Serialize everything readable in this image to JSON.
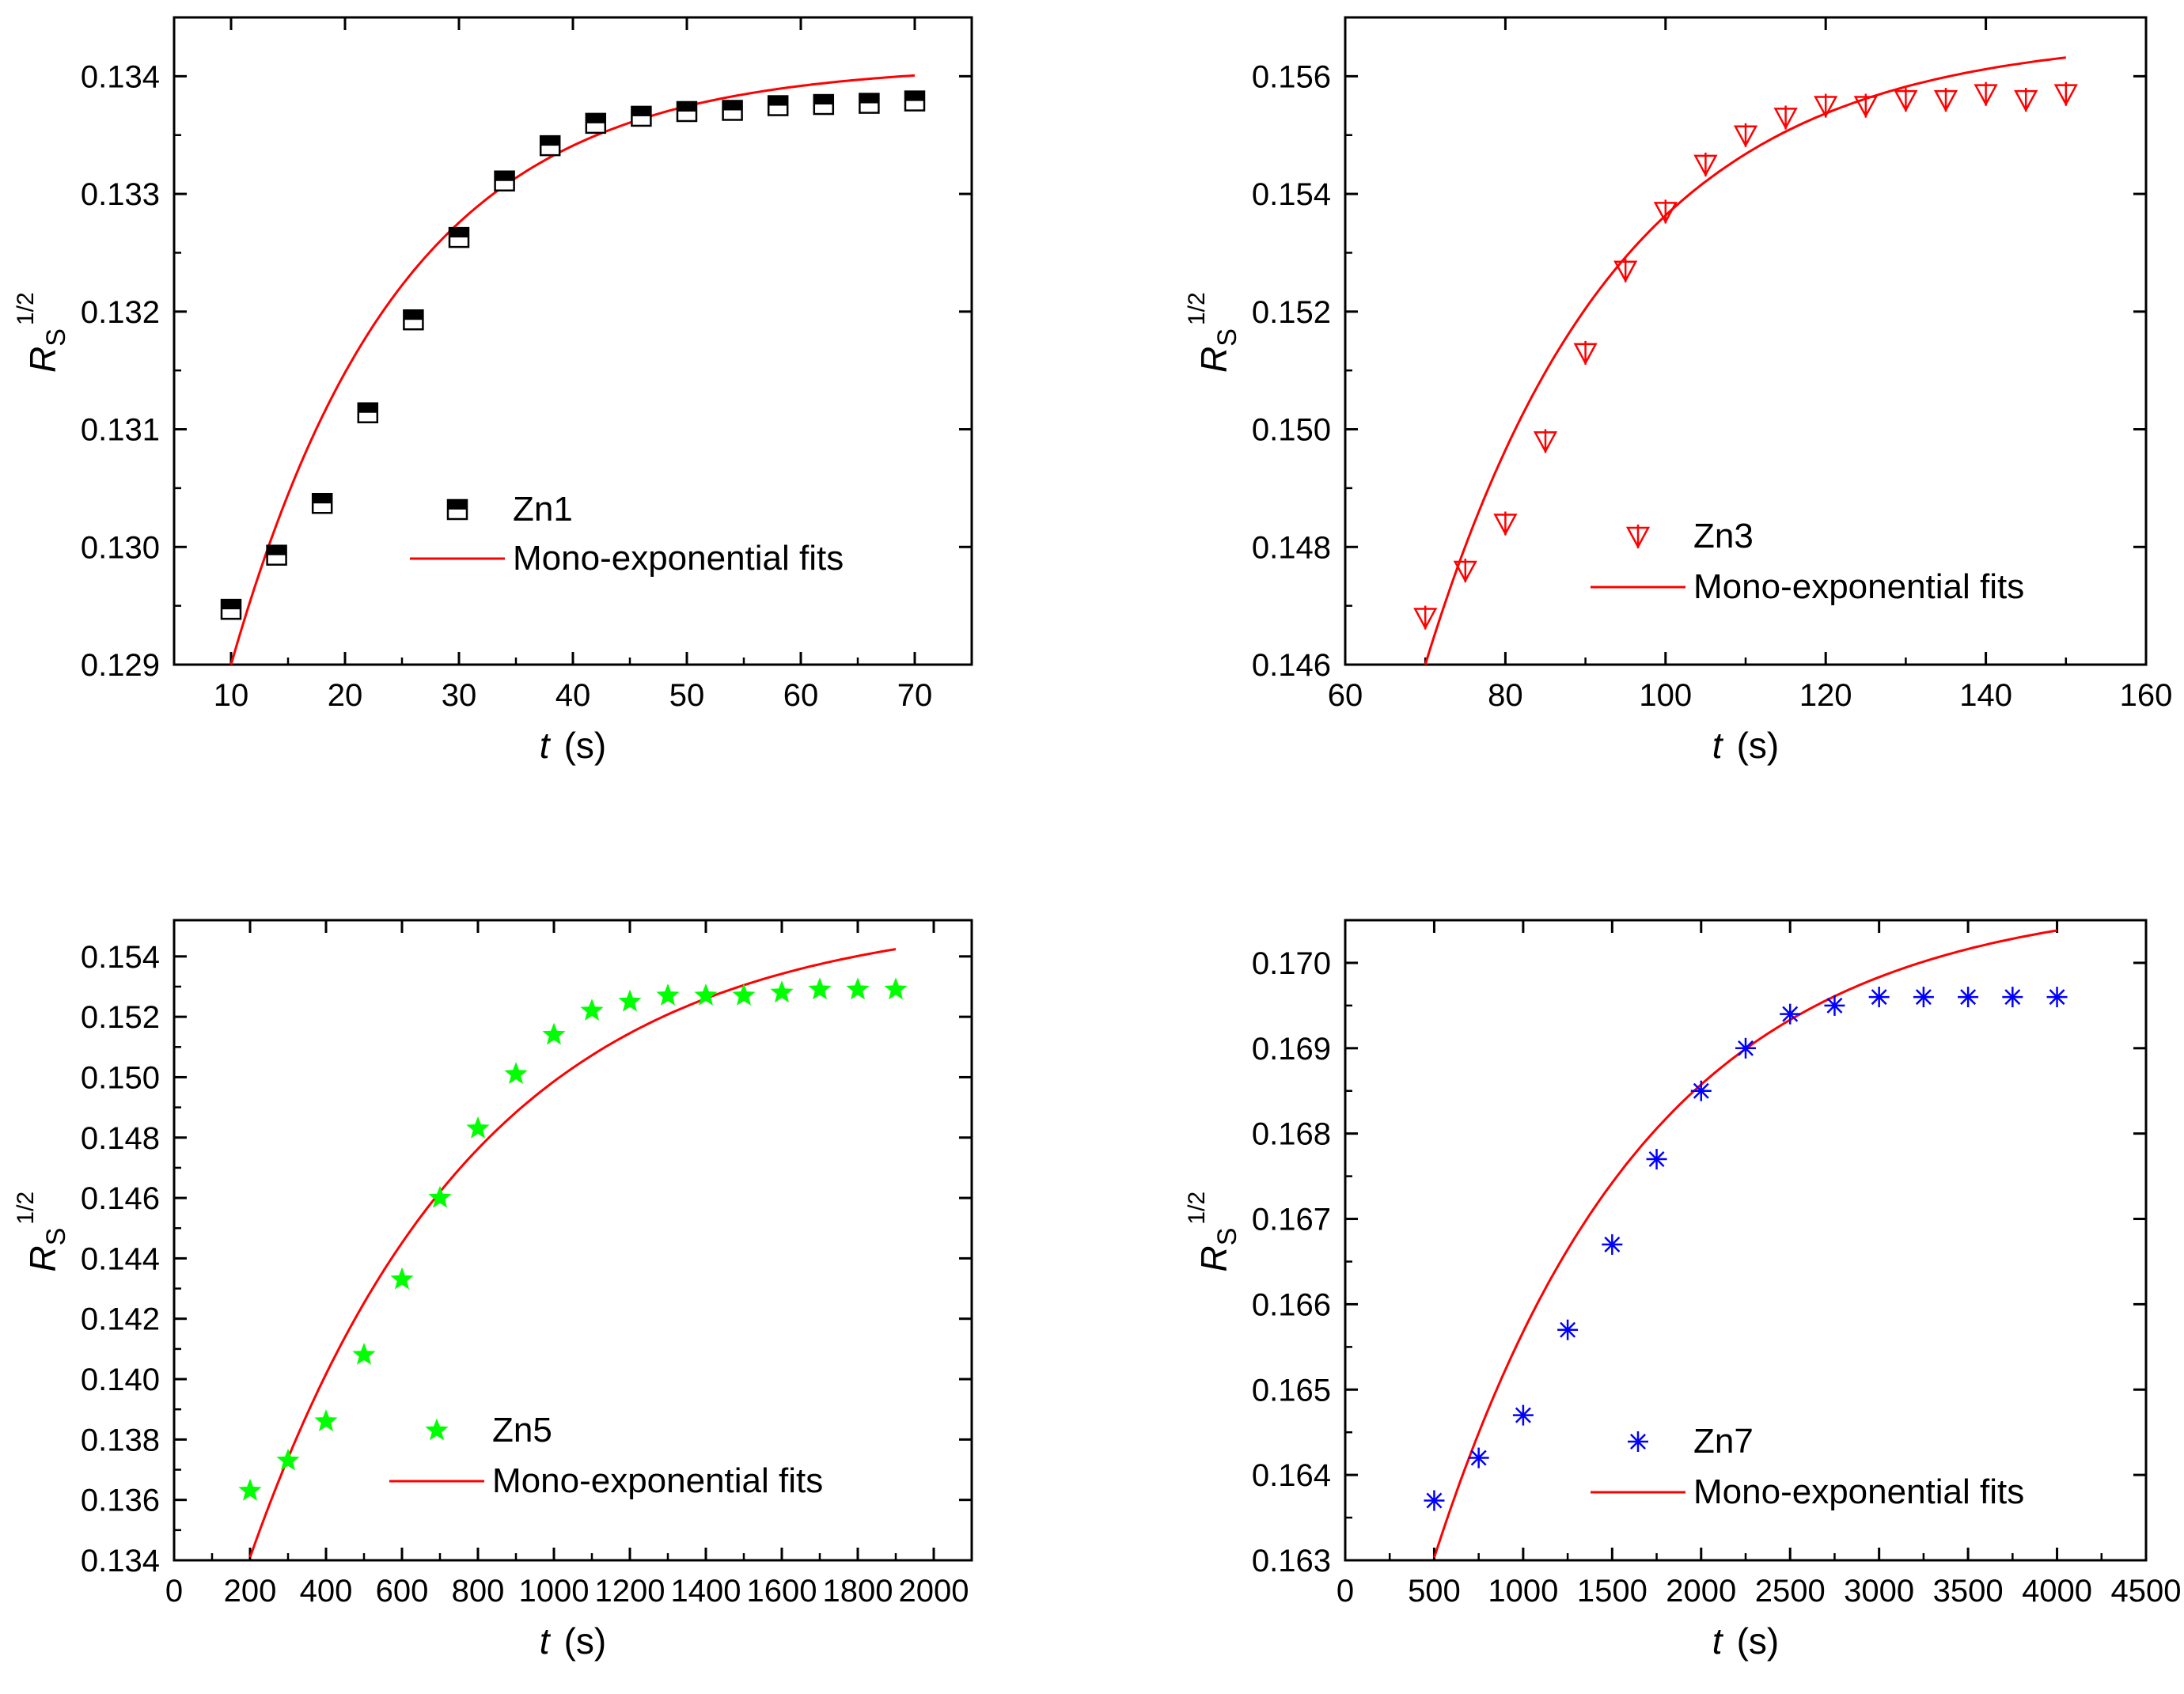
{
  "chart_data": [
    {
      "type": "scatter",
      "xlabel_var": "t",
      "xlabel_unit": "(s)",
      "ylabel_var": "R",
      "ylabel_sub": "S",
      "ylabel_sup": "1/2",
      "xlim": [
        5,
        75
      ],
      "ylim": [
        0.129,
        0.1345
      ],
      "xticks": [
        10,
        20,
        30,
        40,
        50,
        60,
        70
      ],
      "yticks": [
        0.129,
        0.13,
        0.131,
        0.132,
        0.133,
        0.134
      ],
      "ytick_labels": [
        "0.129",
        "0.130",
        "0.131",
        "0.132",
        "0.133",
        "0.134"
      ],
      "legend_position": "center-right",
      "series": [
        {
          "name": "Zn1",
          "kind": "markers",
          "marker": "half-filled-square",
          "color": "#000000",
          "x": [
            10,
            14,
            18,
            22,
            26,
            30,
            34,
            38,
            42,
            46,
            50,
            54,
            58,
            62,
            66,
            70
          ],
          "y": [
            0.12947,
            0.12993,
            0.13037,
            0.13114,
            0.13193,
            0.13263,
            0.13311,
            0.13341,
            0.1336,
            0.13366,
            0.1337,
            0.13371,
            0.13375,
            0.13376,
            0.13377,
            0.13379
          ]
        },
        {
          "name": "Mono-exponential fits",
          "kind": "line",
          "color": "#ff0000",
          "fit": {
            "y_inf": 0.1341,
            "amplitude": 0.0051,
            "x0": 10,
            "tau": 15,
            "x_start": 10,
            "x_end": 70
          }
        }
      ]
    },
    {
      "type": "scatter",
      "xlabel_var": "t",
      "xlabel_unit": "(s)",
      "ylabel_var": "R",
      "ylabel_sub": "S",
      "ylabel_sup": "1/2",
      "xlim": [
        60,
        160
      ],
      "ylim": [
        0.146,
        0.157
      ],
      "xticks": [
        60,
        80,
        100,
        120,
        140,
        160
      ],
      "yticks": [
        0.146,
        0.148,
        0.15,
        0.152,
        0.154,
        0.156
      ],
      "ytick_labels": [
        "0.146",
        "0.148",
        "0.150",
        "0.152",
        "0.154",
        "0.156"
      ],
      "legend_position": "center-right",
      "series": [
        {
          "name": "Zn3",
          "kind": "markers",
          "marker": "down-triangle-line",
          "color": "#ff0000",
          "x": [
            70,
            75,
            80,
            85,
            90,
            95,
            100,
            105,
            110,
            115,
            120,
            125,
            130,
            135,
            140,
            145,
            150
          ],
          "y": [
            0.1468,
            0.1476,
            0.1484,
            0.1498,
            0.1513,
            0.1527,
            0.1537,
            0.1545,
            0.155,
            0.1553,
            0.1555,
            0.1555,
            0.1556,
            0.1556,
            0.1557,
            0.1556,
            0.1557
          ]
        },
        {
          "name": "Mono-exponential fits",
          "kind": "line",
          "color": "#ff0000",
          "fit": {
            "y_inf": 0.1567,
            "amplitude": 0.0107,
            "x0": 70,
            "tau": 24,
            "x_start": 70,
            "x_end": 150
          }
        }
      ]
    },
    {
      "type": "scatter",
      "xlabel_var": "t",
      "xlabel_unit": "(s)",
      "ylabel_var": "R",
      "ylabel_sub": "S",
      "ylabel_sup": "1/2",
      "xlim": [
        0,
        2100
      ],
      "ylim": [
        0.134,
        0.1552
      ],
      "xticks": [
        0,
        200,
        400,
        600,
        800,
        1000,
        1200,
        1400,
        1600,
        1800,
        2000
      ],
      "yticks": [
        0.134,
        0.136,
        0.138,
        0.14,
        0.142,
        0.144,
        0.146,
        0.148,
        0.15,
        0.152,
        0.154
      ],
      "ytick_labels": [
        "0.134",
        "0.136",
        "0.138",
        "0.140",
        "0.142",
        "0.144",
        "0.146",
        "0.148",
        "0.150",
        "0.152",
        "0.154"
      ],
      "legend_position": "bottom-right",
      "series": [
        {
          "name": "Zn5",
          "kind": "markers",
          "marker": "star",
          "color": "#00ff00",
          "x": [
            200,
            300,
            400,
            500,
            600,
            700,
            800,
            900,
            1000,
            1100,
            1200,
            1300,
            1400,
            1500,
            1600,
            1700,
            1800,
            1900
          ],
          "y": [
            0.1363,
            0.1373,
            0.1386,
            0.1408,
            0.1433,
            0.146,
            0.1483,
            0.1501,
            0.1514,
            0.1522,
            0.1525,
            0.1527,
            0.1527,
            0.1527,
            0.1528,
            0.1529,
            0.1529,
            0.1529
          ]
        },
        {
          "name": "Mono-exponential fits",
          "kind": "line",
          "color": "#ff0000",
          "fit": {
            "y_inf": 0.1555,
            "amplitude": 0.0214,
            "x0": 200,
            "tau": 600,
            "x_start": 200,
            "x_end": 1900
          }
        }
      ]
    },
    {
      "type": "scatter",
      "xlabel_var": "t",
      "xlabel_unit": "(s)",
      "ylabel_var": "R",
      "ylabel_sub": "S",
      "ylabel_sup": "1/2",
      "xlim": [
        0,
        4500
      ],
      "ylim": [
        0.163,
        0.1705
      ],
      "xticks": [
        0,
        500,
        1000,
        1500,
        2000,
        2500,
        3000,
        3500,
        4000,
        4500
      ],
      "yticks": [
        0.163,
        0.164,
        0.165,
        0.166,
        0.167,
        0.168,
        0.169,
        0.17
      ],
      "ytick_labels": [
        "0.163",
        "0.164",
        "0.165",
        "0.166",
        "0.167",
        "0.168",
        "0.169",
        "0.170"
      ],
      "legend_position": "bottom-right",
      "series": [
        {
          "name": "Zn7",
          "kind": "markers",
          "marker": "asterisk",
          "color": "#0000ff",
          "x": [
            500,
            750,
            1000,
            1250,
            1500,
            1750,
            2000,
            2250,
            2500,
            2750,
            3000,
            3250,
            3500,
            3750,
            4000
          ],
          "y": [
            0.1637,
            0.1642,
            0.1647,
            0.1657,
            0.1667,
            0.1677,
            0.1685,
            0.169,
            0.1694,
            0.1695,
            0.1696,
            0.1696,
            0.1696,
            0.1696,
            0.1696
          ]
        },
        {
          "name": "Mono-exponential fits",
          "kind": "line",
          "color": "#ff0000",
          "fit": {
            "y_inf": 0.1708,
            "amplitude": 0.0081,
            "x0": 450,
            "tau": 1200,
            "x_start": 500,
            "x_end": 4000
          }
        }
      ]
    }
  ]
}
